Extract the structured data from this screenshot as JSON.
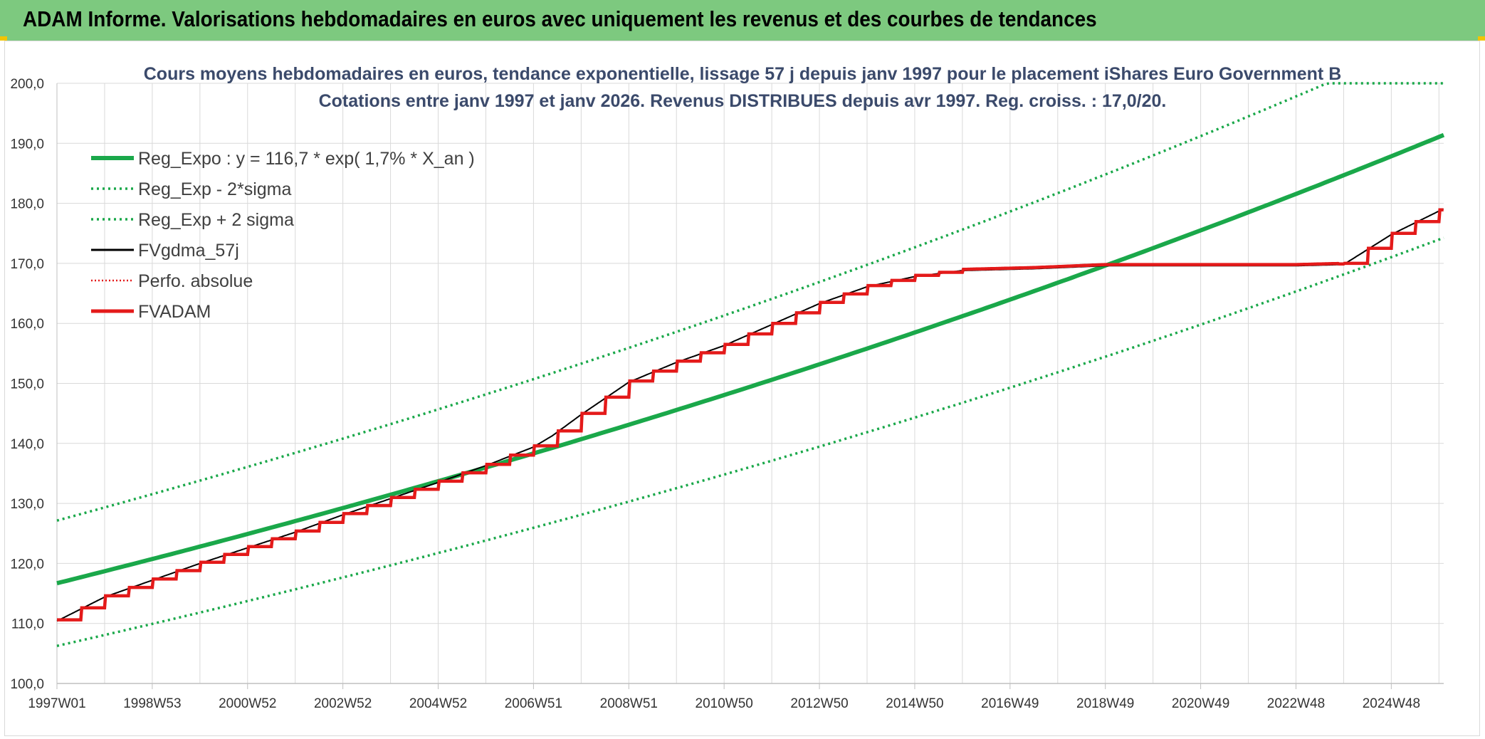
{
  "header": {
    "title": "ADAM Informe. Valorisations hebdomadaires en euros avec uniquement les revenus et des courbes de tendances"
  },
  "colors": {
    "banner": "#7dc97f",
    "reg_green": "#1aa84a",
    "fvadam_red": "#e41a1a",
    "fvgdma_black": "#000000",
    "title_blue": "#3b4a6b"
  },
  "chart_data": {
    "type": "line",
    "title_line1": "Cours moyens hebdomadaires en euros, tendance exponentielle, lissage 57 j depuis janv 1997 pour le placement iShares Euro Government B",
    "title_line2": "Cotations entre janv 1997 et janv 2026. Revenus DISTRIBUES depuis avr 1997. Reg. croiss. : 17,0/20.",
    "ylim": [
      100,
      200
    ],
    "y_ticks": [
      "100,0",
      "110,0",
      "120,0",
      "130,0",
      "140,0",
      "150,0",
      "160,0",
      "170,0",
      "180,0",
      "190,0",
      "200,0"
    ],
    "x_range": [
      1997.0,
      2026.1
    ],
    "x_ticks": [
      {
        "label": "1997W01",
        "year": 1997.0
      },
      {
        "label": "1998W53",
        "year": 1999.0
      },
      {
        "label": "2000W52",
        "year": 2001.0
      },
      {
        "label": "2002W52",
        "year": 2003.0
      },
      {
        "label": "2004W52",
        "year": 2005.0
      },
      {
        "label": "2006W51",
        "year": 2007.0
      },
      {
        "label": "2008W51",
        "year": 2009.0
      },
      {
        "label": "2010W50",
        "year": 2011.0
      },
      {
        "label": "2012W50",
        "year": 2013.0
      },
      {
        "label": "2014W50",
        "year": 2015.0
      },
      {
        "label": "2016W49",
        "year": 2017.0
      },
      {
        "label": "2018W49",
        "year": 2019.0
      },
      {
        "label": "2020W49",
        "year": 2021.0
      },
      {
        "label": "2022W48",
        "year": 2023.0
      },
      {
        "label": "2024W48",
        "year": 2025.0
      }
    ],
    "grid": true,
    "legend_position": "top-left",
    "legend": [
      {
        "key": "reg_expo",
        "label": "Reg_Expo : y = 116,7 * exp( 1,7% *  X_an )",
        "color": "#1aa84a",
        "style": "solid-thick"
      },
      {
        "key": "reg_minus",
        "label": "Reg_Exp - 2*sigma",
        "color": "#1aa84a",
        "style": "dotted"
      },
      {
        "key": "reg_plus",
        "label": "Reg_Exp + 2 sigma",
        "color": "#1aa84a",
        "style": "dotted"
      },
      {
        "key": "fvgdma",
        "label": "FVgdma_57j",
        "color": "#000000",
        "style": "solid"
      },
      {
        "key": "perfo",
        "label": "Perfo. absolue",
        "color": "#e41a1a",
        "style": "dotted-thin"
      },
      {
        "key": "fvadam",
        "label": "FVADAM",
        "color": "#e41a1a",
        "style": "solid-thick"
      }
    ],
    "regression": {
      "a": 116.7,
      "rate": 0.017,
      "sigma_offset_factor": 0.0895
    },
    "series": [
      {
        "name": "FVADAM",
        "x": [
          1997.0,
          1998.0,
          1999.0,
          2000.0,
          2001.0,
          2002.0,
          2003.0,
          2004.0,
          2005.0,
          2006.0,
          2007.0,
          2007.4,
          2008.0,
          2009.0,
          2010.0,
          2011.0,
          2012.0,
          2013.0,
          2014.0,
          2015.0,
          2016.0,
          2017.5,
          2019.0,
          2021.0,
          2023.0,
          2024.0,
          2025.0,
          2026.1
        ],
        "values": [
          110.6,
          114.6,
          117.4,
          120.2,
          122.8,
          125.4,
          128.3,
          131.0,
          133.7,
          136.5,
          139.6,
          141.5,
          145.0,
          150.4,
          153.7,
          156.5,
          160.0,
          163.5,
          166.3,
          168.0,
          169.0,
          169.3,
          169.8,
          169.8,
          169.8,
          170.0,
          175.0,
          179.3
        ]
      }
    ]
  }
}
